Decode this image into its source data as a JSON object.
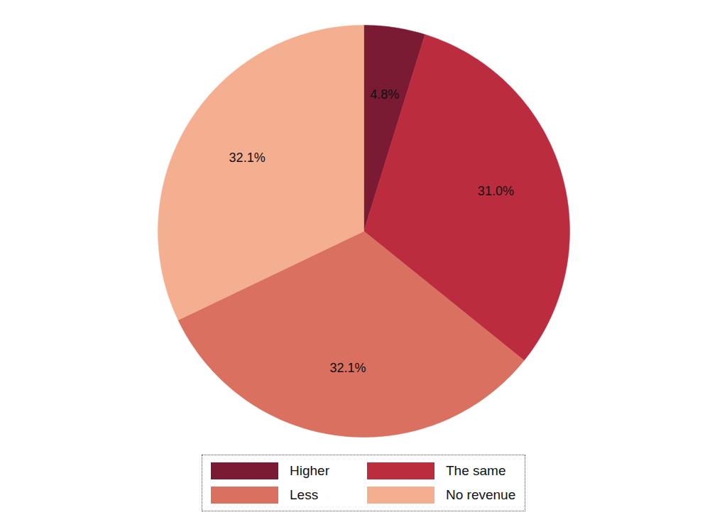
{
  "chart_data": {
    "type": "pie",
    "categories": [
      "Higher",
      "The same",
      "Less",
      "No revenue"
    ],
    "values": [
      4.8,
      31.0,
      32.1,
      32.1
    ],
    "value_labels": [
      "4.8%",
      "31.0%",
      "32.1%",
      "32.1%"
    ],
    "colors": [
      "#7a1a33",
      "#bc2c3f",
      "#d97060",
      "#f4ae90"
    ],
    "data_labels": true,
    "legend": "bottom"
  }
}
